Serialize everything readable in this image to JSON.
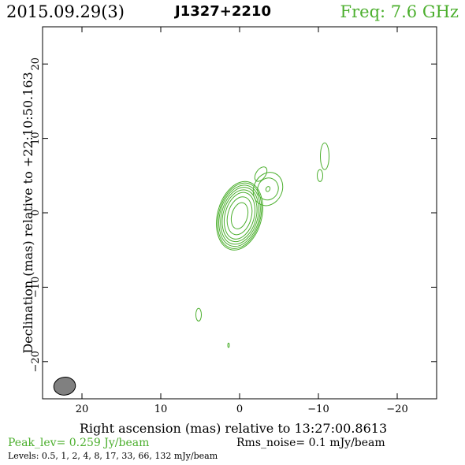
{
  "header": {
    "date": "2015.09.29(3)",
    "source": "J1327+2210",
    "freq": "Freq: 7.6 GHz"
  },
  "footer": {
    "peak": "Peak_lev=  0.259 Jy/beam",
    "rms": "Rms_noise=  0.1 mJy/beam",
    "levels": "Levels: 0.5,   1,   2,   4,   8,  17,  33,  66, 132 mJy/beam"
  },
  "colors": {
    "contour": "#4caf2e",
    "beam": "#808080"
  },
  "chart_data": {
    "type": "contour",
    "xlabel": "Right ascension (mas) relative to 13:27:00.8613",
    "ylabel": "Declination (mas) relative to +22:10:50.163",
    "xlim": [
      25,
      -25
    ],
    "ylim": [
      -25,
      25
    ],
    "xticks": [
      20,
      10,
      0,
      -10,
      -20
    ],
    "yticks": [
      -20,
      -10,
      0,
      10,
      20
    ],
    "tick_labels_x": [
      "20",
      "10",
      "0",
      "−10",
      "−20"
    ],
    "tick_labels_y": [
      "−20",
      "−10",
      "0",
      "10",
      "20"
    ],
    "levels_mJy": [
      0.5,
      1,
      2,
      4,
      8,
      17,
      33,
      66,
      132
    ],
    "peak_Jy_per_beam": 0.259,
    "rms_mJy_per_beam": 0.1,
    "beam": {
      "x": 22.2,
      "y": -23.3,
      "major": 2.4,
      "minor": 1.2,
      "pa_deg": -8
    },
    "components": [
      {
        "name": "core",
        "x": 0.0,
        "y": -0.4,
        "pa_deg": 15,
        "ellipses": [
          [
            1.0,
            1.8
          ],
          [
            1.5,
            2.6
          ],
          [
            1.85,
            3.2
          ],
          [
            2.1,
            3.55
          ],
          [
            2.3,
            3.9
          ],
          [
            2.5,
            4.2
          ],
          [
            2.65,
            4.5
          ],
          [
            2.8,
            4.7
          ]
        ]
      },
      {
        "name": "jet-knot",
        "x": -3.6,
        "y": 3.2,
        "pa_deg": 25,
        "ellipses": [
          [
            0.25,
            0.35
          ],
          [
            1.3,
            1.5
          ],
          [
            1.8,
            2.3
          ]
        ]
      },
      {
        "name": "jet-tail",
        "x": -2.7,
        "y": 5.2,
        "pa_deg": 35,
        "ellipses": [
          [
            0.6,
            1.1
          ]
        ]
      },
      {
        "name": "outer-knot-a",
        "x": -10.8,
        "y": 7.6,
        "pa_deg": 0,
        "ellipses": [
          [
            0.55,
            1.8
          ]
        ]
      },
      {
        "name": "outer-knot-b",
        "x": -10.2,
        "y": 5.0,
        "pa_deg": 0,
        "ellipses": [
          [
            0.35,
            0.8
          ]
        ]
      },
      {
        "name": "south-knot",
        "x": 5.2,
        "y": -13.7,
        "pa_deg": 0,
        "ellipses": [
          [
            0.35,
            0.85
          ]
        ]
      },
      {
        "name": "faint-dot",
        "x": 1.4,
        "y": -17.8,
        "pa_deg": 0,
        "ellipses": [
          [
            0.1,
            0.3
          ]
        ]
      }
    ]
  }
}
